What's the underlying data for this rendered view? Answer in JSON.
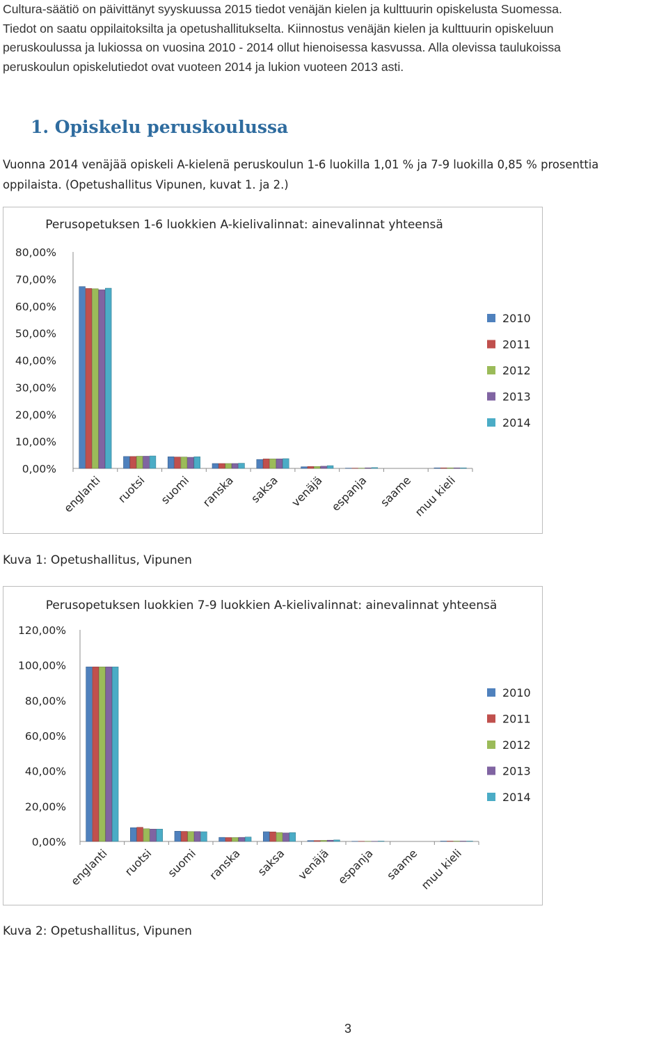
{
  "intro": {
    "lines": [
      "Cultura-säätiö on päivittänyt syyskuussa 2015 tiedot venäjän kielen ja kulttuurin opiskelusta Suomessa.",
      "Tiedot on saatu oppilaitoksilta ja opetushallitukselta. Kiinnostus venäjän kielen ja kulttuurin opiskeluun",
      "peruskoulussa ja lukiossa on vuosina 2010 - 2014 ollut hienoisessa kasvussa. Alla olevissa taulukoissa",
      "peruskoulun opiskelutiedot ovat vuoteen 2014 ja lukion vuoteen 2013 asti."
    ]
  },
  "section": {
    "heading": "1. Opiskelu peruskoulussa",
    "paragraph_lines": [
      "Vuonna 2014 venäjää opiskeli A-kielenä peruskoulun 1-6 luokilla 1,01 % ja 7-9 luokilla 0,85 % prosenttia",
      "oppilaista. (Opetushallitus Vipunen, kuvat 1. ja 2.)"
    ]
  },
  "colors": {
    "series": [
      "#4f81bd",
      "#c0504d",
      "#9bbb59",
      "#8064a2",
      "#4bacc6"
    ]
  },
  "chart_data": [
    {
      "type": "bar",
      "title": "Perusopetuksen 1-6 luokkien A-kielivalinnat: ainevalinnat yhteensä",
      "categories": [
        "englanti",
        "ruotsi",
        "suomi",
        "ranska",
        "saksa",
        "venäjä",
        "espanja",
        "saame",
        "muu kieli"
      ],
      "ylim": [
        0,
        80
      ],
      "yticks": [
        0,
        10,
        20,
        30,
        40,
        50,
        60,
        70,
        80
      ],
      "ytick_labels": [
        "0,00%",
        "10,00%",
        "20,00%",
        "30,00%",
        "40,00%",
        "50,00%",
        "60,00%",
        "70,00%",
        "80,00%"
      ],
      "legend_position": "right",
      "grid": false,
      "series": [
        {
          "name": "2010",
          "values": [
            67.2,
            4.4,
            4.3,
            1.8,
            3.3,
            0.6,
            0.1,
            0.0,
            0.2
          ]
        },
        {
          "name": "2011",
          "values": [
            66.5,
            4.4,
            4.2,
            1.8,
            3.5,
            0.7,
            0.1,
            0.0,
            0.2
          ]
        },
        {
          "name": "2012",
          "values": [
            66.4,
            4.5,
            4.2,
            1.8,
            3.5,
            0.7,
            0.1,
            0.0,
            0.2
          ]
        },
        {
          "name": "2013",
          "values": [
            66.0,
            4.5,
            4.1,
            1.8,
            3.5,
            0.8,
            0.2,
            0.0,
            0.2
          ]
        },
        {
          "name": "2014",
          "values": [
            66.6,
            4.6,
            4.3,
            1.9,
            3.6,
            1.01,
            0.3,
            0.0,
            0.2
          ]
        }
      ]
    },
    {
      "type": "bar",
      "title": "Perusopetuksen luokkien 7-9 luokkien A-kielivalinnat: ainevalinnat yhteensä",
      "categories": [
        "englanti",
        "ruotsi",
        "suomi",
        "ranska",
        "saksa",
        "venäjä",
        "espanja",
        "saame",
        "muu kieli"
      ],
      "ylim": [
        0,
        120
      ],
      "yticks": [
        0,
        20,
        40,
        60,
        80,
        100,
        120
      ],
      "ytick_labels": [
        "0,00%",
        "20,00%",
        "40,00%",
        "60,00%",
        "80,00%",
        "100,00%",
        "120,00%"
      ],
      "legend_position": "right",
      "grid": false,
      "series": [
        {
          "name": "2010",
          "values": [
            99.0,
            7.8,
            5.8,
            2.3,
            5.5,
            0.5,
            0.1,
            0.0,
            0.2
          ]
        },
        {
          "name": "2011",
          "values": [
            99.0,
            8.0,
            5.7,
            2.2,
            5.4,
            0.5,
            0.1,
            0.0,
            0.2
          ]
        },
        {
          "name": "2012",
          "values": [
            99.0,
            7.2,
            5.6,
            2.2,
            5.0,
            0.6,
            0.1,
            0.0,
            0.2
          ]
        },
        {
          "name": "2013",
          "values": [
            99.0,
            7.0,
            5.6,
            2.3,
            4.8,
            0.7,
            0.1,
            0.0,
            0.2
          ]
        },
        {
          "name": "2014",
          "values": [
            99.0,
            7.0,
            5.5,
            2.5,
            5.0,
            0.85,
            0.2,
            0.0,
            0.2
          ]
        }
      ]
    }
  ],
  "captions": [
    "Kuva 1: Opetushallitus, Vipunen",
    "Kuva 2: Opetushallitus, Vipunen"
  ],
  "page_number": "3"
}
